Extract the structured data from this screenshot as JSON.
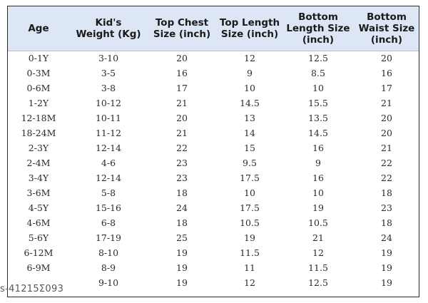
{
  "table": {
    "headers": [
      [
        "Age"
      ],
      [
        "Kid's",
        "Weight (Kg)"
      ],
      [
        "Top Chest",
        "Size (inch)"
      ],
      [
        "Top Length",
        "Size (inch)"
      ],
      [
        "Bottom",
        "Length Size",
        "(inch)"
      ],
      [
        "Bottom",
        "Waist Size",
        "(inch)"
      ]
    ],
    "rows": [
      [
        "0-1Y",
        "3-10",
        "20",
        "12",
        "12.5",
        "20"
      ],
      [
        "0-3M",
        "3-5",
        "16",
        "9",
        "8.5",
        "16"
      ],
      [
        "0-6M",
        "3-8",
        "17",
        "10",
        "10",
        "17"
      ],
      [
        "1-2Y",
        "10-12",
        "21",
        "14.5",
        "15.5",
        "21"
      ],
      [
        "12-18M",
        "10-11",
        "20",
        "13",
        "13.5",
        "20"
      ],
      [
        "18-24M",
        "11-12",
        "21",
        "14",
        "14.5",
        "20"
      ],
      [
        "2-3Y",
        "12-14",
        "22",
        "15",
        "16",
        "21"
      ],
      [
        "2-4M",
        "4-6",
        "23",
        "9.5",
        "9",
        "22"
      ],
      [
        "3-4Y",
        "12-14",
        "23",
        "17.5",
        "16",
        "22"
      ],
      [
        "3-6M",
        "5-8",
        "18",
        "10",
        "10",
        "18"
      ],
      [
        "4-5Y",
        "15-16",
        "24",
        "17.5",
        "19",
        "23"
      ],
      [
        "4-6M",
        "6-8",
        "18",
        "10.5",
        "10.5",
        "18"
      ],
      [
        "5-6Y",
        "17-19",
        "25",
        "19",
        "21",
        "24"
      ],
      [
        "6-12M",
        "8-10",
        "19",
        "11.5",
        "12",
        "19"
      ],
      [
        "6-9M",
        "8-9",
        "19",
        "11",
        "11.5",
        "19"
      ],
      [
        "",
        "9-10",
        "19",
        "12",
        "12.5",
        "19"
      ]
    ]
  },
  "watermark": "s-41215Σ093"
}
